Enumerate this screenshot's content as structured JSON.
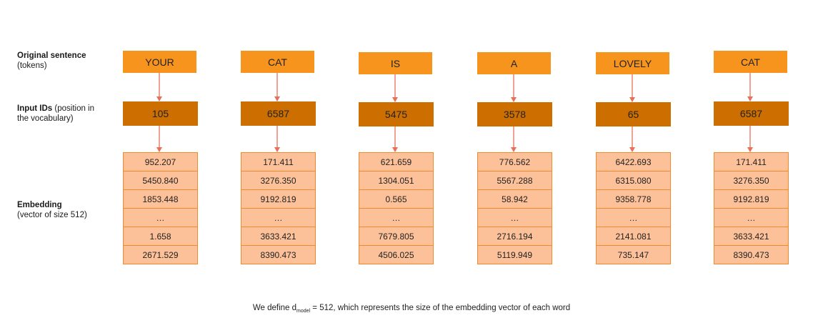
{
  "labels": {
    "original_title": "Original sentence",
    "original_sub": "(tokens)",
    "input_title": "Input IDs",
    "input_sub_1": " (position in",
    "input_sub_2": "the vocabulary)",
    "embed_title": "Embedding",
    "embed_sub": "(vector of size 512)"
  },
  "columns": [
    {
      "token": "YOUR",
      "id": "105",
      "embedding": [
        "952.207",
        "5450.840",
        "1853.448",
        "…",
        "1.658",
        "2671.529"
      ]
    },
    {
      "token": "CAT",
      "id": "6587",
      "embedding": [
        "171.411",
        "3276.350",
        "9192.819",
        "…",
        "3633.421",
        "8390.473"
      ]
    },
    {
      "token": "IS",
      "id": "5475",
      "embedding": [
        "621.659",
        "1304.051",
        "0.565",
        "…",
        "7679.805",
        "4506.025"
      ]
    },
    {
      "token": "A",
      "id": "3578",
      "embedding": [
        "776.562",
        "5567.288",
        "58.942",
        "…",
        "2716.194",
        "5119.949"
      ]
    },
    {
      "token": "LOVELY",
      "id": "65",
      "embedding": [
        "6422.693",
        "6315.080",
        "9358.778",
        "…",
        "2141.081",
        "735.147"
      ]
    },
    {
      "token": "CAT",
      "id": "6587",
      "embedding": [
        "171.411",
        "3276.350",
        "9192.819",
        "…",
        "3633.421",
        "8390.473"
      ]
    }
  ],
  "footnote": {
    "prefix": "We define d",
    "subscript": "model",
    "suffix": " = 512, which represents the size of the embedding vector of each word"
  },
  "colors": {
    "token_fill": "#f7941d",
    "id_fill": "#cc6e00",
    "embed_fill": "#fdc199",
    "arrow": "#e8705a"
  }
}
